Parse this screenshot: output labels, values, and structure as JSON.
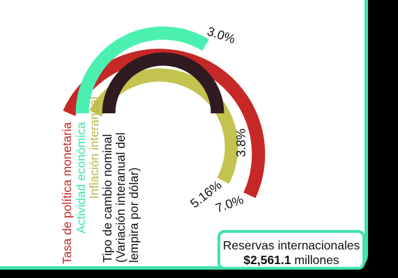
{
  "chart_data": {
    "type": "radial-bar",
    "series": [
      {
        "name": "Tasa de política monetaria",
        "value": "7.0%",
        "color": "#c62828"
      },
      {
        "name": "Actividad económica",
        "value": "3.0%",
        "color": "#4bf0b0"
      },
      {
        "name": "Inflación interanual",
        "value": "5.16%",
        "color": "#c3c34f"
      },
      {
        "name": "Tipo de cambio nominal (Variación interanual del lempira por dólar)",
        "value": "3.8%",
        "color": "#2f1b1f"
      }
    ],
    "labels": {
      "tpm": "Tasa de política monetaria",
      "actividad": "Actividad económica",
      "inflacion": "Inflación interanual",
      "tipo_cambio_line1": "Tipo de cambio nominal",
      "tipo_cambio_line2": "(Variación interanual del",
      "tipo_cambio_line3": "lempira por dólar)"
    }
  },
  "callout": {
    "title": "Reservas internacionales",
    "amount": "$2,561.1",
    "unit": "millones"
  },
  "colors": {
    "accent": "#3fe3a8",
    "background": "#000000"
  }
}
